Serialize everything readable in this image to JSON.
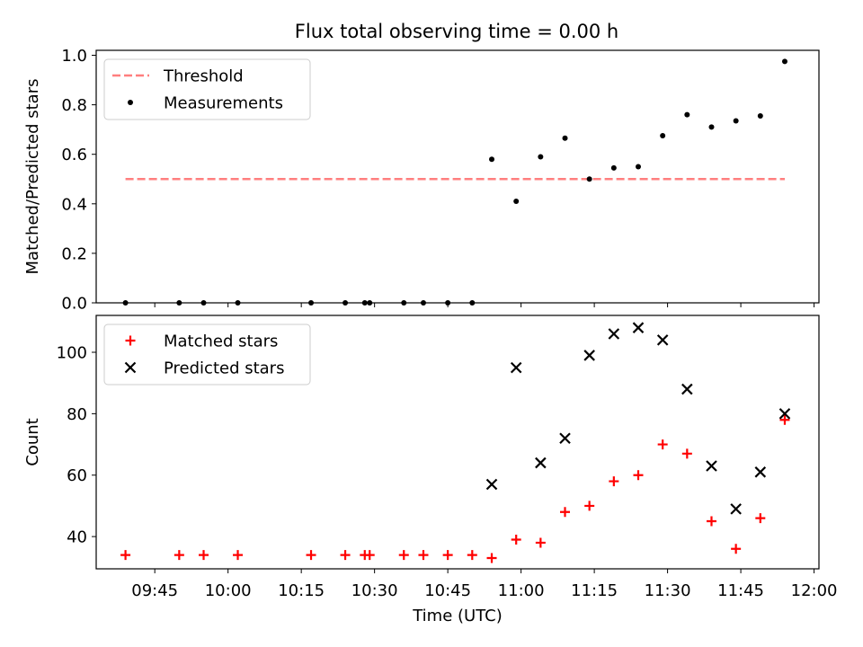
{
  "title": "Flux total observing time = 0.00 h",
  "chart_data": [
    {
      "type": "scatter",
      "title": "Flux total observing time = 0.00 h",
      "xlabel": "",
      "ylabel": "Matched/Predicted stars",
      "xlim": [
        "09:33",
        "12:01"
      ],
      "ylim": [
        0.0,
        1.02
      ],
      "yticks": [
        0.0,
        0.2,
        0.4,
        0.6,
        0.8,
        1.0
      ],
      "ytick_labels": [
        "0.0",
        "0.2",
        "0.4",
        "0.6",
        "0.8",
        "1.0"
      ],
      "legend": {
        "position": "upper-left",
        "entries": [
          "Threshold",
          "Measurements"
        ]
      },
      "grid": false,
      "series": [
        {
          "name": "Threshold",
          "style": "dashed-line",
          "color": "#ff7f7f",
          "x": [
            "09:39",
            "11:54"
          ],
          "y": [
            0.5,
            0.5
          ]
        },
        {
          "name": "Measurements",
          "style": "dot",
          "color": "#000000",
          "x": [
            "09:39",
            "09:50",
            "09:55",
            "10:02",
            "10:17",
            "10:24",
            "10:28",
            "10:29",
            "10:36",
            "10:40",
            "10:45",
            "10:50",
            "10:54",
            "10:59",
            "11:04",
            "11:09",
            "11:14",
            "11:19",
            "11:24",
            "11:29",
            "11:34",
            "11:39",
            "11:44",
            "11:49",
            "11:54"
          ],
          "y": [
            0,
            0,
            0,
            0,
            0,
            0,
            0,
            0,
            0,
            0,
            0,
            0,
            0.58,
            0.41,
            0.59,
            0.665,
            0.5,
            0.545,
            0.55,
            0.675,
            0.76,
            0.71,
            0.735,
            0.755,
            0.975
          ]
        }
      ]
    },
    {
      "type": "scatter",
      "title": "",
      "xlabel": "Time (UTC)",
      "ylabel": "Count",
      "xlim": [
        "09:33",
        "12:01"
      ],
      "ylim": [
        29.5,
        112
      ],
      "yticks": [
        40,
        60,
        80,
        100
      ],
      "ytick_labels": [
        "40",
        "60",
        "80",
        "100"
      ],
      "xticks": [
        "09:45",
        "10:00",
        "10:15",
        "10:30",
        "10:45",
        "11:00",
        "11:15",
        "11:30",
        "11:45",
        "12:00"
      ],
      "xtick_labels": [
        "09:45",
        "10:00",
        "10:15",
        "10:30",
        "10:45",
        "11:00",
        "11:15",
        "11:30",
        "11:45",
        "12:00"
      ],
      "legend": {
        "position": "upper-left",
        "entries": [
          "Matched stars",
          "Predicted stars"
        ]
      },
      "grid": false,
      "series": [
        {
          "name": "Matched stars",
          "style": "plus",
          "color": "#ff0000",
          "x": [
            "09:39",
            "09:50",
            "09:55",
            "10:02",
            "10:17",
            "10:24",
            "10:28",
            "10:29",
            "10:36",
            "10:40",
            "10:45",
            "10:50",
            "10:54",
            "10:59",
            "11:04",
            "11:09",
            "11:14",
            "11:19",
            "11:24",
            "11:29",
            "11:34",
            "11:39",
            "11:44",
            "11:49",
            "11:54"
          ],
          "y": [
            34,
            34,
            34,
            34,
            34,
            34,
            34,
            34,
            34,
            34,
            34,
            34,
            33,
            39,
            38,
            48,
            50,
            58,
            60,
            70,
            67,
            45,
            36,
            46,
            78
          ]
        },
        {
          "name": "Predicted stars",
          "style": "x",
          "color": "#000000",
          "x": [
            "10:54",
            "10:59",
            "11:04",
            "11:09",
            "11:14",
            "11:19",
            "11:24",
            "11:29",
            "11:34",
            "11:39",
            "11:44",
            "11:49",
            "11:54"
          ],
          "y": [
            57,
            95,
            64,
            72,
            99,
            106,
            108,
            104,
            88,
            63,
            49,
            61,
            80
          ]
        }
      ]
    }
  ]
}
